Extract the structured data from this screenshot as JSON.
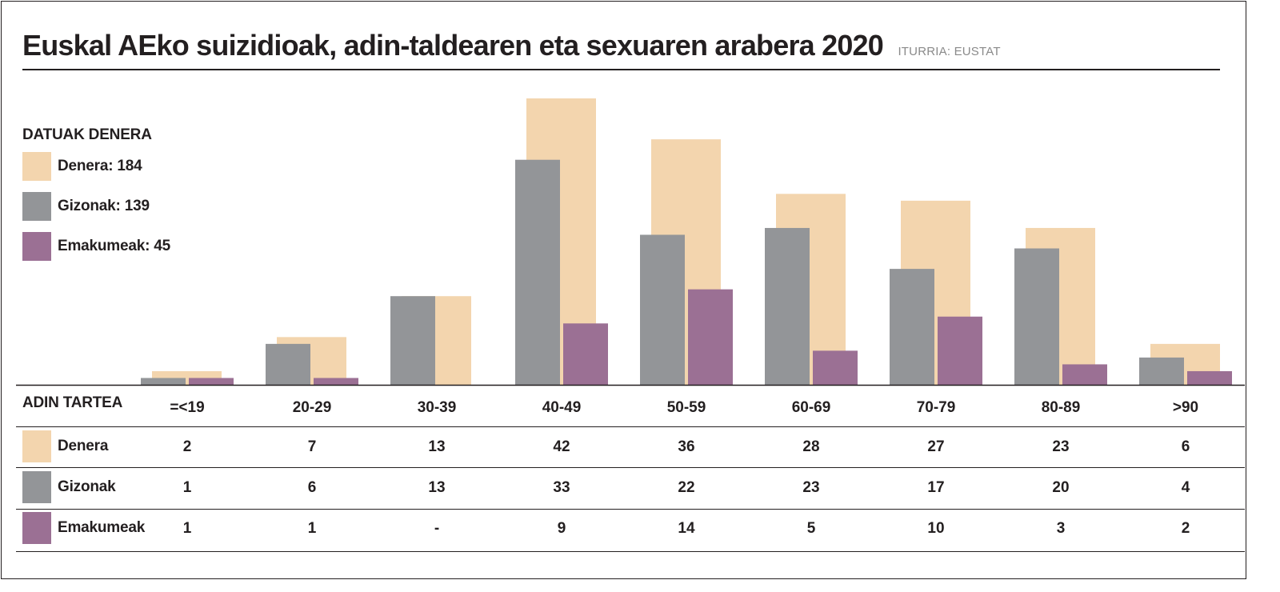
{
  "title": "Euskal AEko suizidioak, adin-taldearen eta sexuaren arabera 2020",
  "source": "ITURRIA: EUSTAT",
  "legend": {
    "title": "DATUAK DENERA",
    "items": [
      {
        "label": "Denera: 184",
        "color": "#f3d5ae"
      },
      {
        "label": "Gizonak: 139",
        "color": "#939598"
      },
      {
        "label": "Emakumeak: 45",
        "color": "#9b7094"
      }
    ]
  },
  "table": {
    "header_label": "ADIN TARTEA",
    "rows": [
      {
        "label": "Denera",
        "color": "#f3d5ae",
        "cells": [
          "2",
          "7",
          "13",
          "42",
          "36",
          "28",
          "27",
          "23",
          "6"
        ]
      },
      {
        "label": "Gizonak",
        "color": "#939598",
        "cells": [
          "1",
          "6",
          "13",
          "33",
          "22",
          "23",
          "17",
          "20",
          "4"
        ]
      },
      {
        "label": "Emakumeak",
        "color": "#9b7094",
        "cells": [
          "1",
          "1",
          "-",
          "9",
          "14",
          "5",
          "10",
          "3",
          "2"
        ]
      }
    ]
  },
  "chart_data": {
    "type": "bar",
    "categories": [
      "=<19",
      "20-29",
      "30-39",
      "40-49",
      "50-59",
      "60-69",
      "70-79",
      "80-89",
      ">90"
    ],
    "series": [
      {
        "name": "Denera",
        "color": "#f3d5ae",
        "values": [
          2,
          7,
          13,
          42,
          36,
          28,
          27,
          23,
          6
        ]
      },
      {
        "name": "Gizonak",
        "color": "#939598",
        "values": [
          1,
          6,
          13,
          33,
          22,
          23,
          17,
          20,
          4
        ]
      },
      {
        "name": "Emakumeak",
        "color": "#9b7094",
        "values": [
          1,
          1,
          0,
          9,
          14,
          5,
          10,
          3,
          2
        ]
      }
    ],
    "title": "Euskal AEko suizidioak, adin-taldearen eta sexuaren arabera 2020",
    "xlabel": "ADIN TARTEA",
    "ylabel": "",
    "ylim": [
      0,
      42
    ],
    "grid": false,
    "legend_position": "left"
  }
}
